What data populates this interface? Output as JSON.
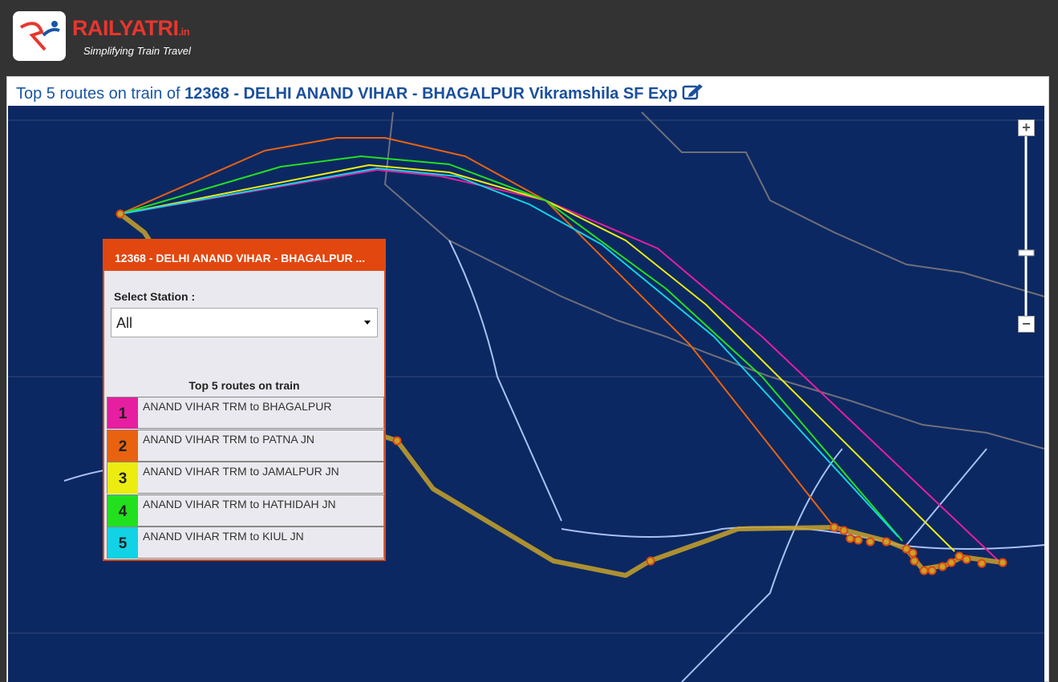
{
  "logo": {
    "brand": "RAILYATRI",
    "suffix": ".in",
    "tagline": "Simplifying Train Travel"
  },
  "header": {
    "prefix": "Top 5 routes on train of",
    "train": "12368 - DELHI ANAND VIHAR - BHAGALPUR Vikramshila SF Exp"
  },
  "panel": {
    "title": "12368 - DELHI ANAND VIHAR - BHAGALPUR ...",
    "select_label": "Select Station :",
    "select_value": "All",
    "list_title": "Top 5 routes on train",
    "routes": [
      {
        "rank": "1",
        "label": "ANAND VIHAR TRM to BHAGALPUR",
        "color": "#e61ea0"
      },
      {
        "rank": "2",
        "label": "ANAND VIHAR TRM to PATNA JN",
        "color": "#e8620f"
      },
      {
        "rank": "3",
        "label": "ANAND VIHAR TRM to JAMALPUR JN",
        "color": "#ecec10"
      },
      {
        "rank": "4",
        "label": "ANAND VIHAR TRM to HATHIDAH JN",
        "color": "#22e01e"
      },
      {
        "rank": "5",
        "label": "ANAND VIHAR TRM to KIUL JN",
        "color": "#12d2e6"
      }
    ]
  },
  "zoom": {
    "in": "+",
    "out": "−"
  }
}
